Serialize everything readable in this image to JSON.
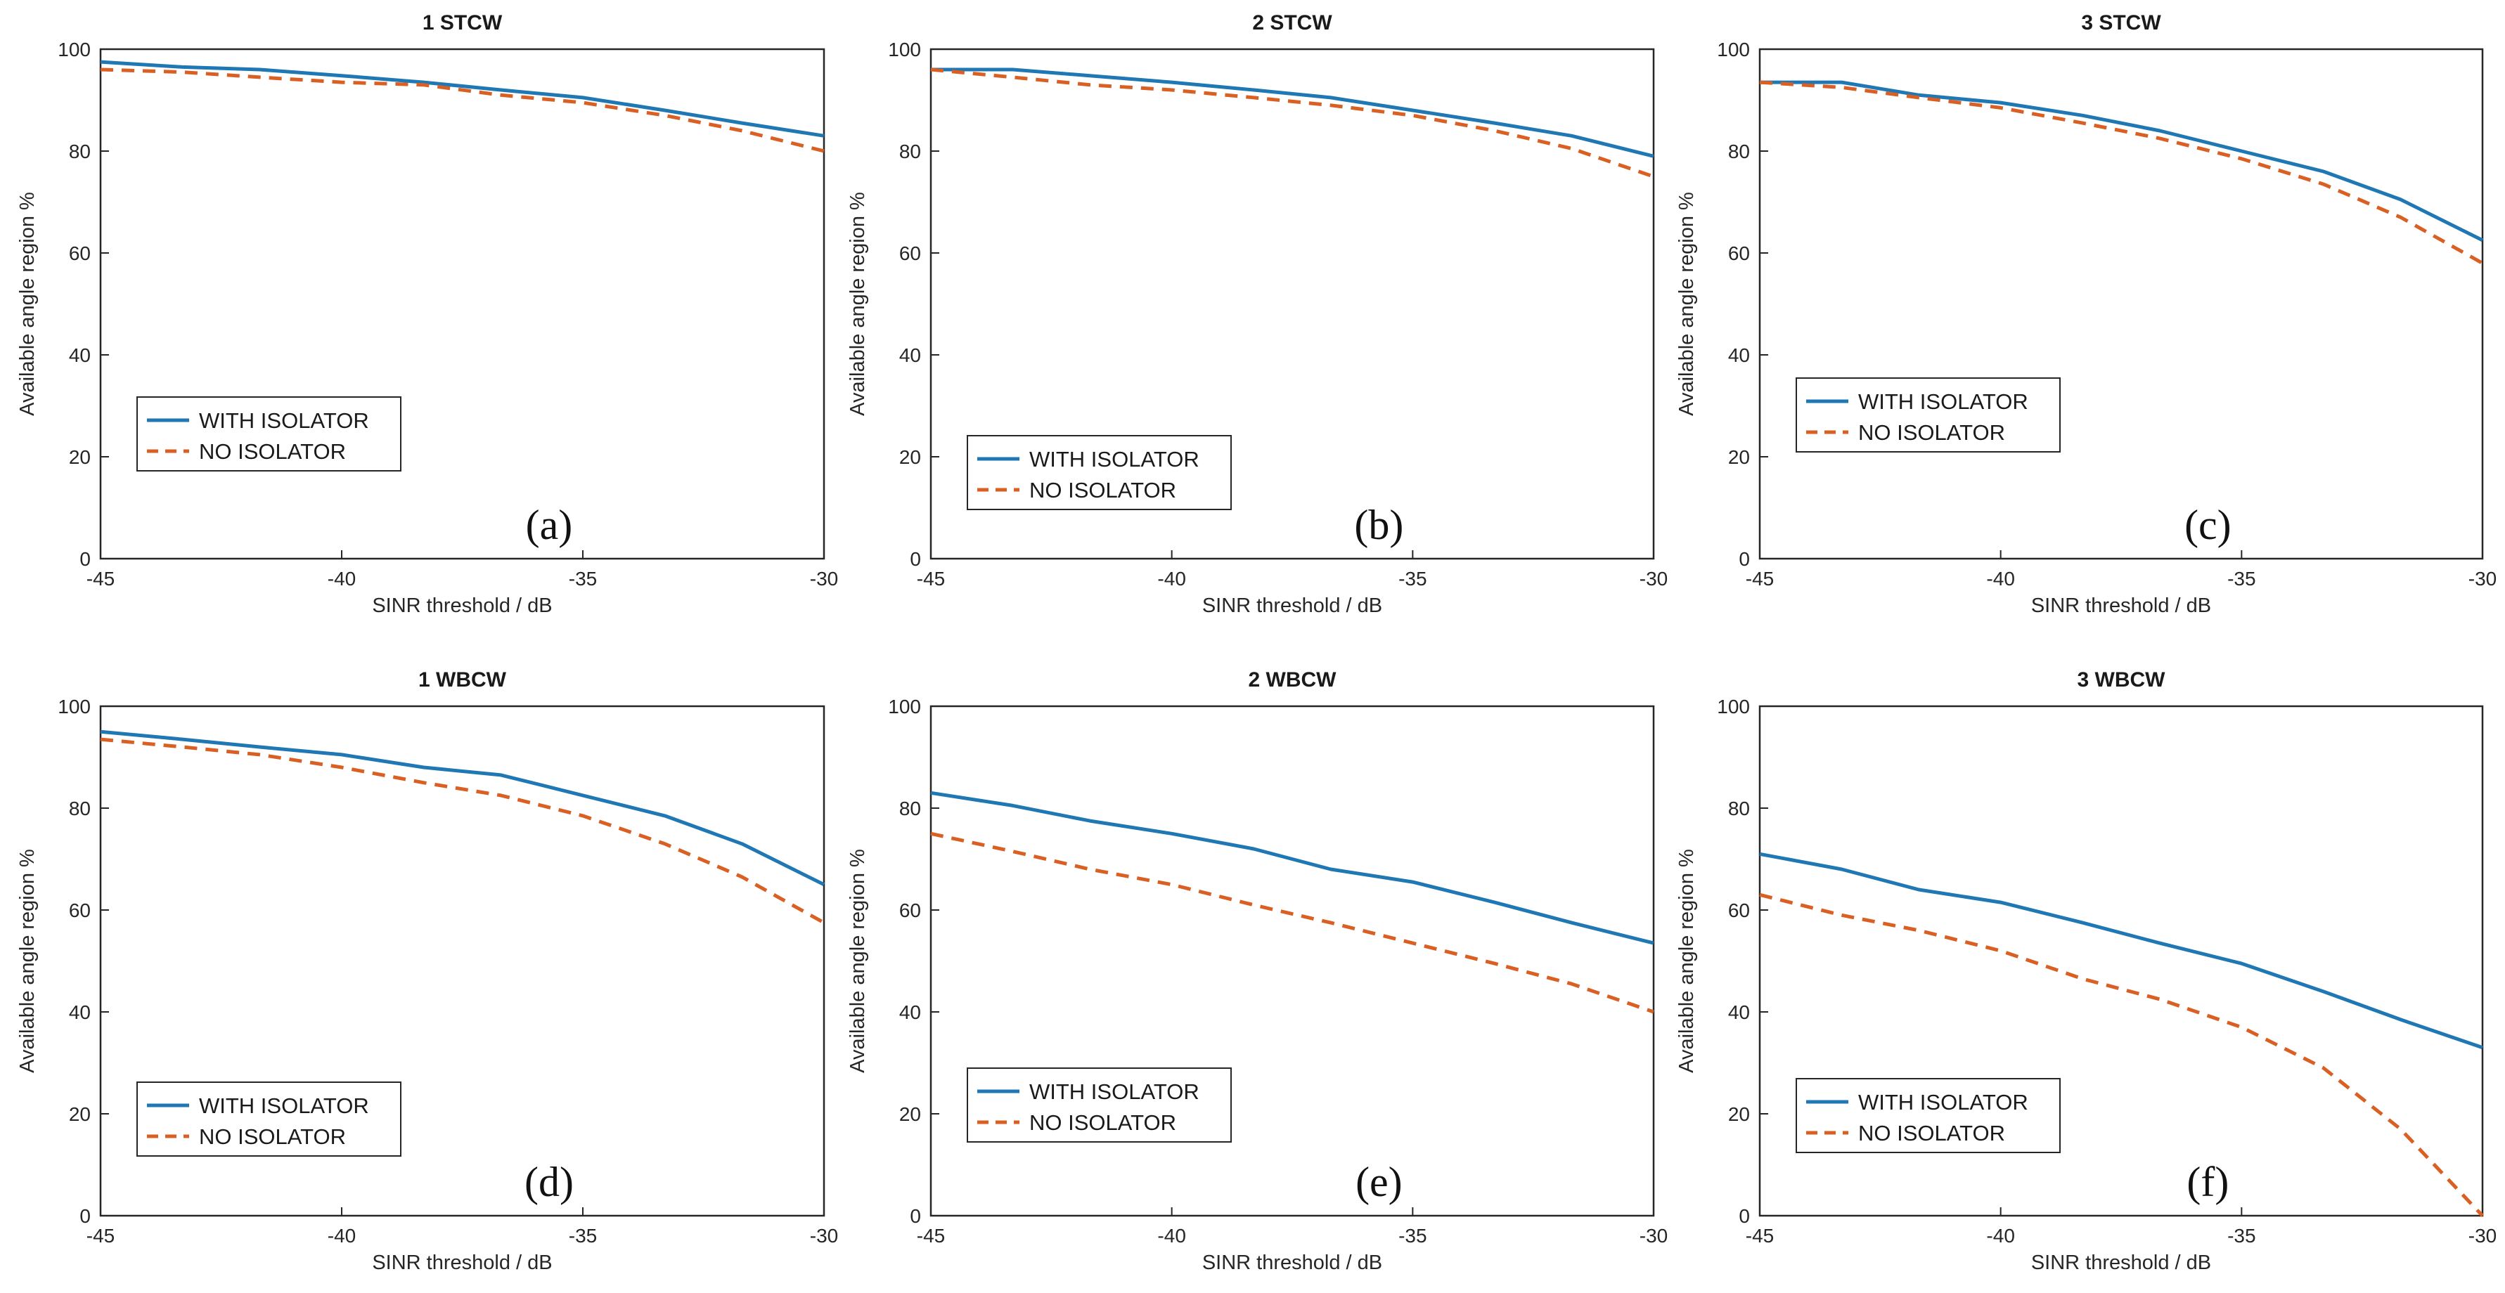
{
  "figure": {
    "ylabel": "Available angle region %",
    "xlabel": "SINR threshold / dB",
    "colors": {
      "with": "#1f77b4",
      "without": "#d95f23"
    }
  },
  "chart_data": [
    {
      "type": "line",
      "title": "1 STCW",
      "panel_label": "(a)",
      "xlabel": "SINR threshold / dB",
      "ylabel": "Available angle region %",
      "xlim": [
        -45,
        -30
      ],
      "ylim": [
        0,
        100
      ],
      "xticks": [
        -45,
        -40,
        -35,
        -30
      ],
      "yticks": [
        0,
        20,
        40,
        60,
        80,
        100
      ],
      "legend": {
        "position": "bottom-left",
        "entries": [
          "WITH ISOLATOR",
          "NO ISOLATOR"
        ]
      },
      "x": [
        -45,
        -43.3,
        -41.7,
        -40,
        -38.3,
        -36.7,
        -35,
        -33.3,
        -31.7,
        -30
      ],
      "series": [
        {
          "name": "WITH ISOLATOR",
          "style": "solid",
          "values": [
            97.5,
            96.5,
            96,
            94.8,
            93.5,
            92,
            90.5,
            88,
            85.5,
            83
          ]
        },
        {
          "name": "NO ISOLATOR",
          "style": "dashed",
          "values": [
            96,
            95.5,
            94.5,
            93.5,
            93,
            91,
            89.5,
            87,
            84,
            80
          ]
        }
      ]
    },
    {
      "type": "line",
      "title": "2 STCW",
      "panel_label": "(b)",
      "xlabel": "SINR threshold / dB",
      "ylabel": "Available angle region %",
      "xlim": [
        -45,
        -30
      ],
      "ylim": [
        0,
        100
      ],
      "xticks": [
        -45,
        -40,
        -35,
        -30
      ],
      "yticks": [
        0,
        20,
        40,
        60,
        80,
        100
      ],
      "legend": {
        "position": "bottom-left",
        "entries": [
          "WITH ISOLATOR",
          "NO ISOLATOR"
        ]
      },
      "x": [
        -45,
        -43.3,
        -41.7,
        -40,
        -38.3,
        -36.7,
        -35,
        -33.3,
        -31.7,
        -30
      ],
      "series": [
        {
          "name": "WITH ISOLATOR",
          "style": "solid",
          "values": [
            96,
            96,
            94.8,
            93.5,
            92,
            90.5,
            88,
            85.5,
            83,
            79
          ]
        },
        {
          "name": "NO ISOLATOR",
          "style": "dashed",
          "values": [
            96,
            94.5,
            93,
            92,
            90.5,
            89,
            87,
            84,
            80.5,
            75
          ]
        }
      ]
    },
    {
      "type": "line",
      "title": "3 STCW",
      "panel_label": "(c)",
      "xlabel": "SINR threshold / dB",
      "ylabel": "Available angle region %",
      "xlim": [
        -45,
        -30
      ],
      "ylim": [
        0,
        100
      ],
      "xticks": [
        -45,
        -40,
        -35,
        -30
      ],
      "yticks": [
        0,
        20,
        40,
        60,
        80,
        100
      ],
      "legend": {
        "position": "bottom-left",
        "entries": [
          "WITH ISOLATOR",
          "NO ISOLATOR"
        ]
      },
      "x": [
        -45,
        -43.3,
        -41.7,
        -40,
        -38.3,
        -36.7,
        -35,
        -33.3,
        -31.7,
        -30
      ],
      "series": [
        {
          "name": "WITH ISOLATOR",
          "style": "solid",
          "values": [
            93.5,
            93.5,
            91,
            89.5,
            87,
            84,
            80,
            76,
            70.5,
            62.5
          ]
        },
        {
          "name": "NO ISOLATOR",
          "style": "dashed",
          "values": [
            93.5,
            92.5,
            90.5,
            88.5,
            85.5,
            82.5,
            78.5,
            73.5,
            67,
            58
          ]
        }
      ]
    },
    {
      "type": "line",
      "title": "1 WBCW",
      "panel_label": "(d)",
      "xlabel": "SINR threshold / dB",
      "ylabel": "Available angle region %",
      "xlim": [
        -45,
        -30
      ],
      "ylim": [
        0,
        100
      ],
      "xticks": [
        -45,
        -40,
        -35,
        -30
      ],
      "yticks": [
        0,
        20,
        40,
        60,
        80,
        100
      ],
      "legend": {
        "position": "bottom-left",
        "entries": [
          "WITH ISOLATOR",
          "NO ISOLATOR"
        ]
      },
      "x": [
        -45,
        -43.3,
        -41.7,
        -40,
        -38.3,
        -36.7,
        -35,
        -33.3,
        -31.7,
        -30
      ],
      "series": [
        {
          "name": "WITH ISOLATOR",
          "style": "solid",
          "values": [
            95,
            93.5,
            92,
            90.5,
            88,
            86.5,
            82.5,
            78.5,
            73,
            65
          ]
        },
        {
          "name": "NO ISOLATOR",
          "style": "dashed",
          "values": [
            93.5,
            92,
            90.5,
            88,
            85,
            82.5,
            78.5,
            73,
            66.5,
            57.5
          ]
        }
      ]
    },
    {
      "type": "line",
      "title": "2 WBCW",
      "panel_label": "(e)",
      "xlabel": "SINR threshold / dB",
      "ylabel": "Available angle region %",
      "xlim": [
        -45,
        -30
      ],
      "ylim": [
        0,
        100
      ],
      "xticks": [
        -45,
        -40,
        -35,
        -30
      ],
      "yticks": [
        0,
        20,
        40,
        60,
        80,
        100
      ],
      "legend": {
        "position": "bottom-left",
        "entries": [
          "WITH ISOLATOR",
          "NO ISOLATOR"
        ]
      },
      "x": [
        -45,
        -43.3,
        -41.7,
        -40,
        -38.3,
        -36.7,
        -35,
        -33.3,
        -31.7,
        -30
      ],
      "series": [
        {
          "name": "WITH ISOLATOR",
          "style": "solid",
          "values": [
            83,
            80.5,
            77.5,
            75,
            72,
            68,
            65.5,
            61.5,
            57.5,
            53.5
          ]
        },
        {
          "name": "NO ISOLATOR",
          "style": "dashed",
          "values": [
            75,
            71.5,
            68,
            65,
            61,
            57.5,
            53.5,
            49.5,
            45.5,
            40
          ]
        }
      ]
    },
    {
      "type": "line",
      "title": "3 WBCW",
      "panel_label": "(f)",
      "xlabel": "SINR threshold / dB",
      "ylabel": "Available angle region %",
      "xlim": [
        -45,
        -30
      ],
      "ylim": [
        0,
        100
      ],
      "xticks": [
        -45,
        -40,
        -35,
        -30
      ],
      "yticks": [
        0,
        20,
        40,
        60,
        80,
        100
      ],
      "legend": {
        "position": "bottom-left",
        "entries": [
          "WITH ISOLATOR",
          "NO ISOLATOR"
        ]
      },
      "x": [
        -45,
        -43.3,
        -41.7,
        -40,
        -38.3,
        -36.7,
        -35,
        -33.3,
        -31.7,
        -30
      ],
      "series": [
        {
          "name": "WITH ISOLATOR",
          "style": "solid",
          "values": [
            71,
            68,
            64,
            61.5,
            57.5,
            53.5,
            49.5,
            44,
            38.5,
            33
          ]
        },
        {
          "name": "NO ISOLATOR",
          "style": "dashed",
          "values": [
            63,
            59,
            56,
            52,
            46.5,
            42.5,
            37,
            29,
            17,
            0
          ]
        }
      ]
    }
  ]
}
